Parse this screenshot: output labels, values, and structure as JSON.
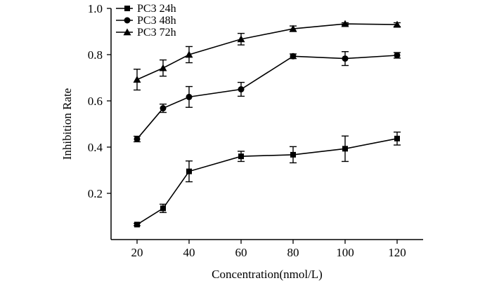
{
  "chart_data": {
    "type": "line",
    "title": "",
    "xlabel": "Concentration(nmol/L)",
    "ylabel": "Inhibition Rate",
    "x": [
      20,
      30,
      40,
      60,
      80,
      100,
      120
    ],
    "xlim": [
      10,
      130
    ],
    "ylim": [
      0,
      1.0
    ],
    "x_ticks": [
      "20",
      "40",
      "60",
      "80",
      "100",
      "120"
    ],
    "y_ticks": [
      "0.2",
      "0.4",
      "0.6",
      "0.8",
      "1.0"
    ],
    "grid": false,
    "legend_position": "top-left",
    "series": [
      {
        "name": "PC3 24h",
        "marker": "square",
        "values": [
          0.065,
          0.135,
          0.295,
          0.36,
          0.367,
          0.393,
          0.437
        ],
        "errors": [
          0.005,
          0.018,
          0.045,
          0.022,
          0.035,
          0.055,
          0.028
        ]
      },
      {
        "name": "PC3 48h",
        "marker": "circle",
        "values": [
          0.435,
          0.568,
          0.617,
          0.65,
          0.793,
          0.783,
          0.797
        ],
        "errors": [
          0.012,
          0.018,
          0.045,
          0.03,
          0.01,
          0.03,
          0.012
        ]
      },
      {
        "name": "PC3 72h",
        "marker": "triangle",
        "values": [
          0.692,
          0.742,
          0.8,
          0.867,
          0.912,
          0.933,
          0.93
        ],
        "errors": [
          0.045,
          0.035,
          0.035,
          0.025,
          0.012,
          0.005,
          0.008
        ]
      }
    ]
  }
}
